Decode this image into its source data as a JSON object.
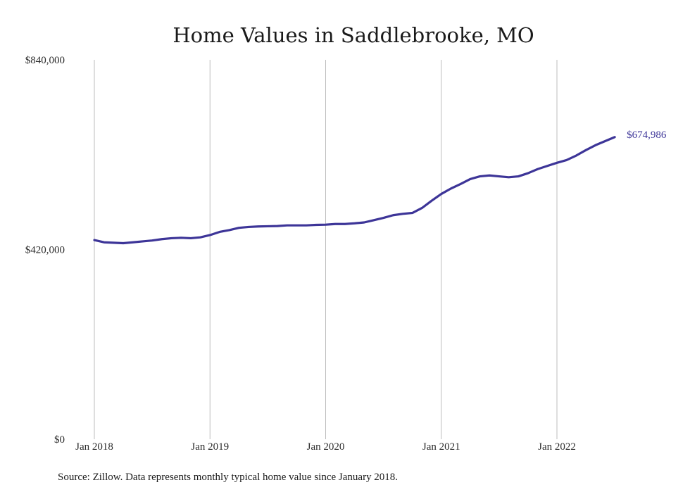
{
  "chart_data": {
    "type": "line",
    "title": "Home Values in Saddlebrooke, MO",
    "xlabel": "",
    "ylabel": "",
    "ylim": [
      0,
      840000
    ],
    "y_ticks": [
      "$0",
      "$420,000",
      "$840,000"
    ],
    "y_tick_values": [
      0,
      420000,
      840000
    ],
    "x_ticks": [
      "Jan 2018",
      "Jan 2019",
      "Jan 2020",
      "Jan 2021",
      "Jan 2022"
    ],
    "x_tick_dates": [
      "2018-01",
      "2019-01",
      "2020-01",
      "2021-01",
      "2022-01"
    ],
    "grid": "vertical",
    "line_color": "#3d3598",
    "end_label": "$674,986",
    "source": "Source: Zillow. Data represents monthly typical home value since January 2018.",
    "x": [
      "2018-01",
      "2018-02",
      "2018-03",
      "2018-04",
      "2018-05",
      "2018-06",
      "2018-07",
      "2018-08",
      "2018-09",
      "2018-10",
      "2018-11",
      "2018-12",
      "2019-01",
      "2019-02",
      "2019-03",
      "2019-04",
      "2019-05",
      "2019-06",
      "2019-07",
      "2019-08",
      "2019-09",
      "2019-10",
      "2019-11",
      "2019-12",
      "2020-01",
      "2020-02",
      "2020-03",
      "2020-04",
      "2020-05",
      "2020-06",
      "2020-07",
      "2020-08",
      "2020-09",
      "2020-10",
      "2020-11",
      "2020-12",
      "2021-01",
      "2021-02",
      "2021-03",
      "2021-04",
      "2021-05",
      "2021-06",
      "2021-07",
      "2021-08",
      "2021-09",
      "2021-10",
      "2021-11",
      "2021-12",
      "2022-01",
      "2022-02",
      "2022-03",
      "2022-04",
      "2022-05",
      "2022-06",
      "2022-07"
    ],
    "values": [
      441000,
      436000,
      435000,
      434000,
      436000,
      438000,
      440000,
      443000,
      445000,
      446000,
      445000,
      447000,
      452000,
      459000,
      463000,
      468000,
      470000,
      471000,
      471500,
      472000,
      473500,
      473500,
      473500,
      474500,
      475000,
      476500,
      476500,
      478000,
      480000,
      485000,
      490000,
      496000,
      499000,
      501000,
      512000,
      528000,
      543000,
      555000,
      565000,
      576000,
      582000,
      584000,
      582000,
      580000,
      582000,
      589000,
      598000,
      605000,
      612000,
      618000,
      628000,
      640000,
      651000,
      660000,
      669000
    ],
    "end_value": 674986
  }
}
